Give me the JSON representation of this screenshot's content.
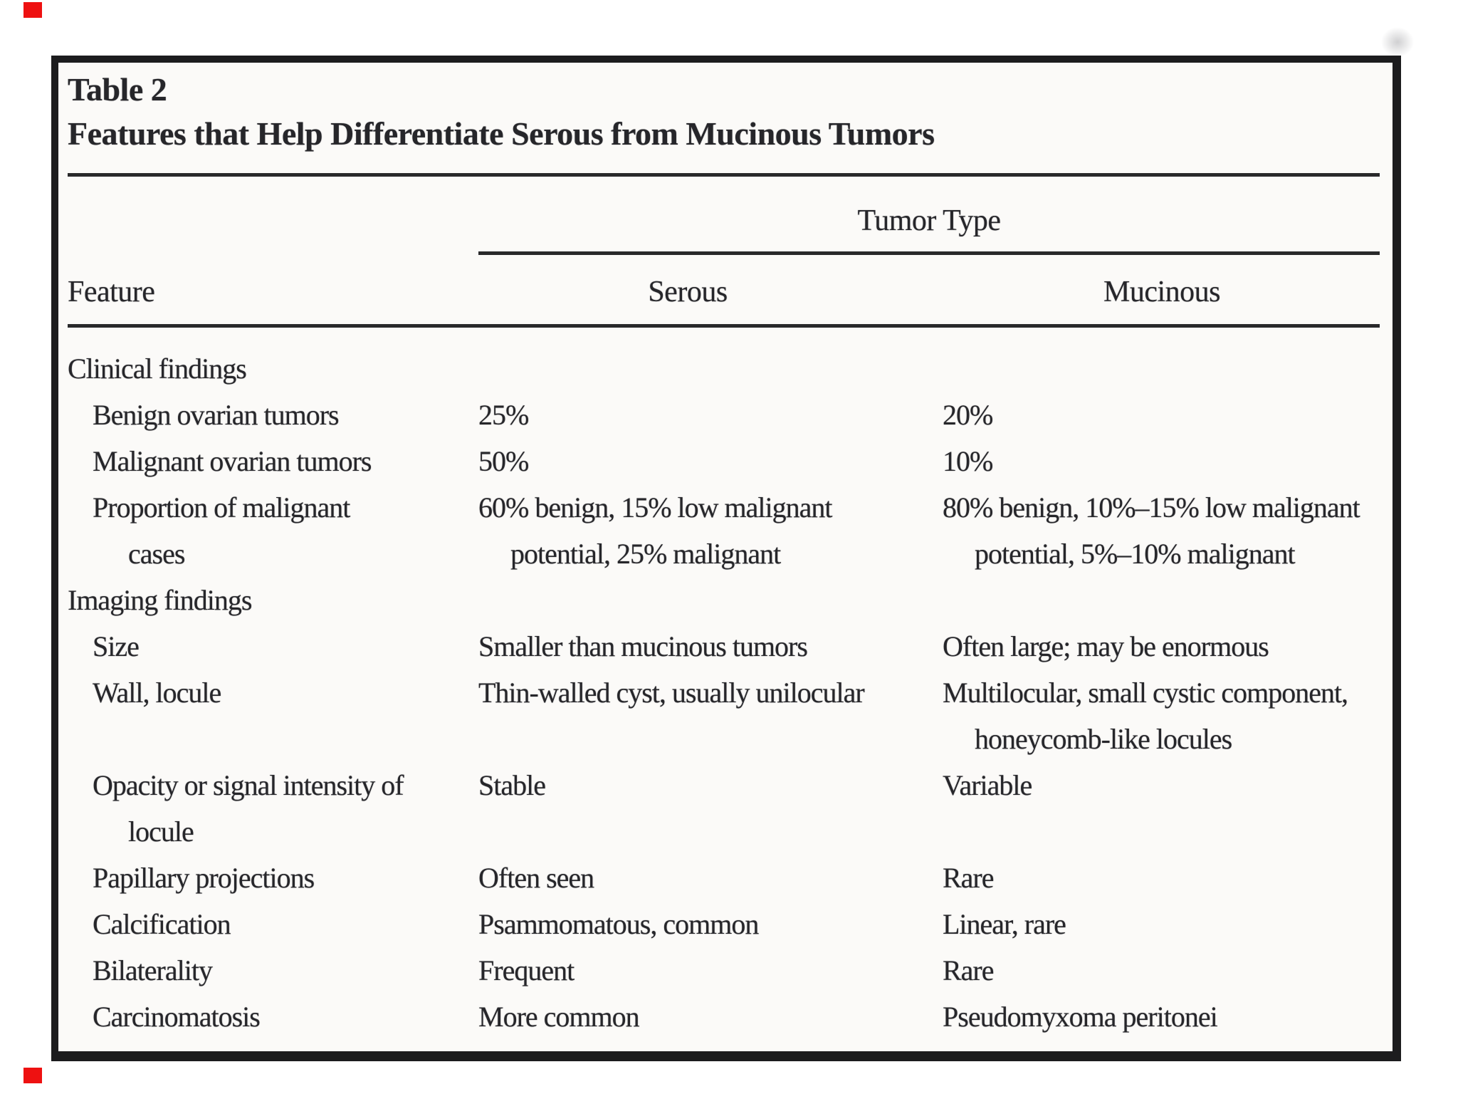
{
  "artifacts": {
    "red_mark_color": "#ee1111",
    "border_color": "#1c1c1e",
    "paper_color": "#fbfaf8"
  },
  "table": {
    "title_line1": "Table 2",
    "title_line2": "Features that Help Differentiate Serous from Mucinous Tumors",
    "header": {
      "group": "Tumor Type",
      "feature": "Feature",
      "serous": "Serous",
      "mucinous": "Mucinous"
    },
    "rows": [
      {
        "f": "Clinical findings",
        "fi": 0,
        "s": "",
        "m": "",
        "section": true
      },
      {
        "f": "Benign ovarian tumors",
        "fi": 1,
        "s": "25%",
        "m": "20%"
      },
      {
        "f": "Malignant ovarian tumors",
        "fi": 1,
        "s": "50%",
        "m": "10%"
      },
      {
        "f": "Proportion of malignant",
        "fi": 1,
        "s": "60% benign, 15% low malignant",
        "m": "80% benign, 10%–15% low malignant"
      },
      {
        "f": "cases",
        "fi": 2,
        "s": "potential, 25% malignant",
        "si": 1,
        "m": "potential, 5%–10% malignant",
        "mi": 1
      },
      {
        "f": "Imaging findings",
        "fi": 0,
        "s": "",
        "m": "",
        "section": true
      },
      {
        "f": "Size",
        "fi": 1,
        "s": "Smaller than mucinous tumors",
        "m": "Often large; may be enormous"
      },
      {
        "f": "Wall, locule",
        "fi": 1,
        "s": "Thin-walled cyst, usually unilocular",
        "m": "Multilocular, small cystic component,"
      },
      {
        "f": "",
        "fi": 0,
        "s": "",
        "m": "honeycomb-like locules",
        "mi": 1
      },
      {
        "f": "Opacity or signal intensity of",
        "fi": 1,
        "s": "Stable",
        "m": "Variable"
      },
      {
        "f": "locule",
        "fi": 2,
        "s": "",
        "m": ""
      },
      {
        "f": "Papillary projections",
        "fi": 1,
        "s": "Often seen",
        "m": "Rare"
      },
      {
        "f": "Calcification",
        "fi": 1,
        "s": "Psammomatous, common",
        "m": "Linear, rare"
      },
      {
        "f": "Bilaterality",
        "fi": 1,
        "s": "Frequent",
        "m": "Rare"
      },
      {
        "f": "Carcinomatosis",
        "fi": 1,
        "s": "More common",
        "m": "Pseudomyxoma peritonei"
      }
    ]
  }
}
